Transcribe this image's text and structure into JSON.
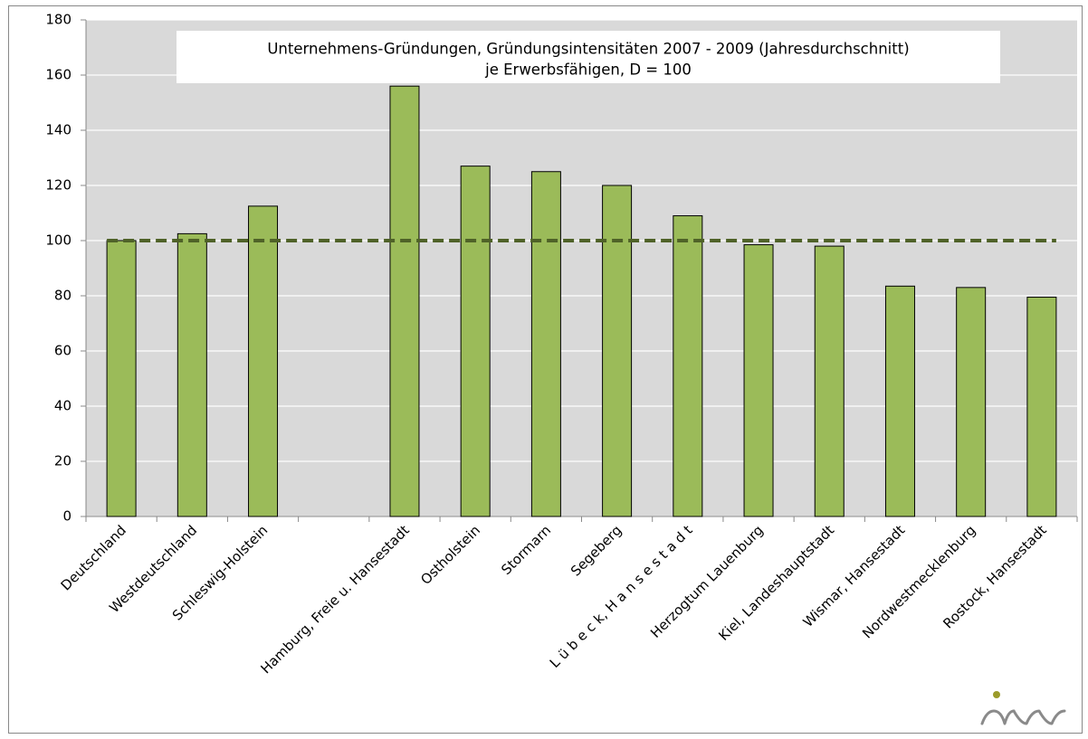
{
  "chart_data": {
    "type": "bar",
    "title": "Unternehmens-Gründungen, Gründungsintensitäten  2007 - 2009 (Jahresdurchschnitt)",
    "subtitle": "je Erwerbsfähigen, D = 100",
    "categories": [
      "Deutschland",
      "Westdeutschland",
      "Schleswig-Holstein",
      null,
      "Hamburg, Freie u. Hansestadt",
      "Ostholstein",
      "Stormarn",
      "Segeberg",
      "L ü b e c k, H a n s e s t a d t",
      "Herzogtum  Lauenburg",
      "Kiel, Landeshauptstadt",
      "Wismar, Hansestadt",
      "Nordwestmecklenburg",
      "Rostock, Hansestadt"
    ],
    "values": [
      100,
      102.5,
      112.5,
      null,
      156,
      127,
      125,
      120,
      109,
      98.5,
      98,
      83.5,
      83,
      79.5
    ],
    "color": "#9bbb59",
    "reference_line": {
      "value": 100,
      "color": "#4f6228"
    },
    "ylim": [
      0,
      180
    ],
    "yticks": [
      0,
      20,
      40,
      60,
      80,
      100,
      120,
      140,
      160,
      180
    ],
    "grid": true
  }
}
